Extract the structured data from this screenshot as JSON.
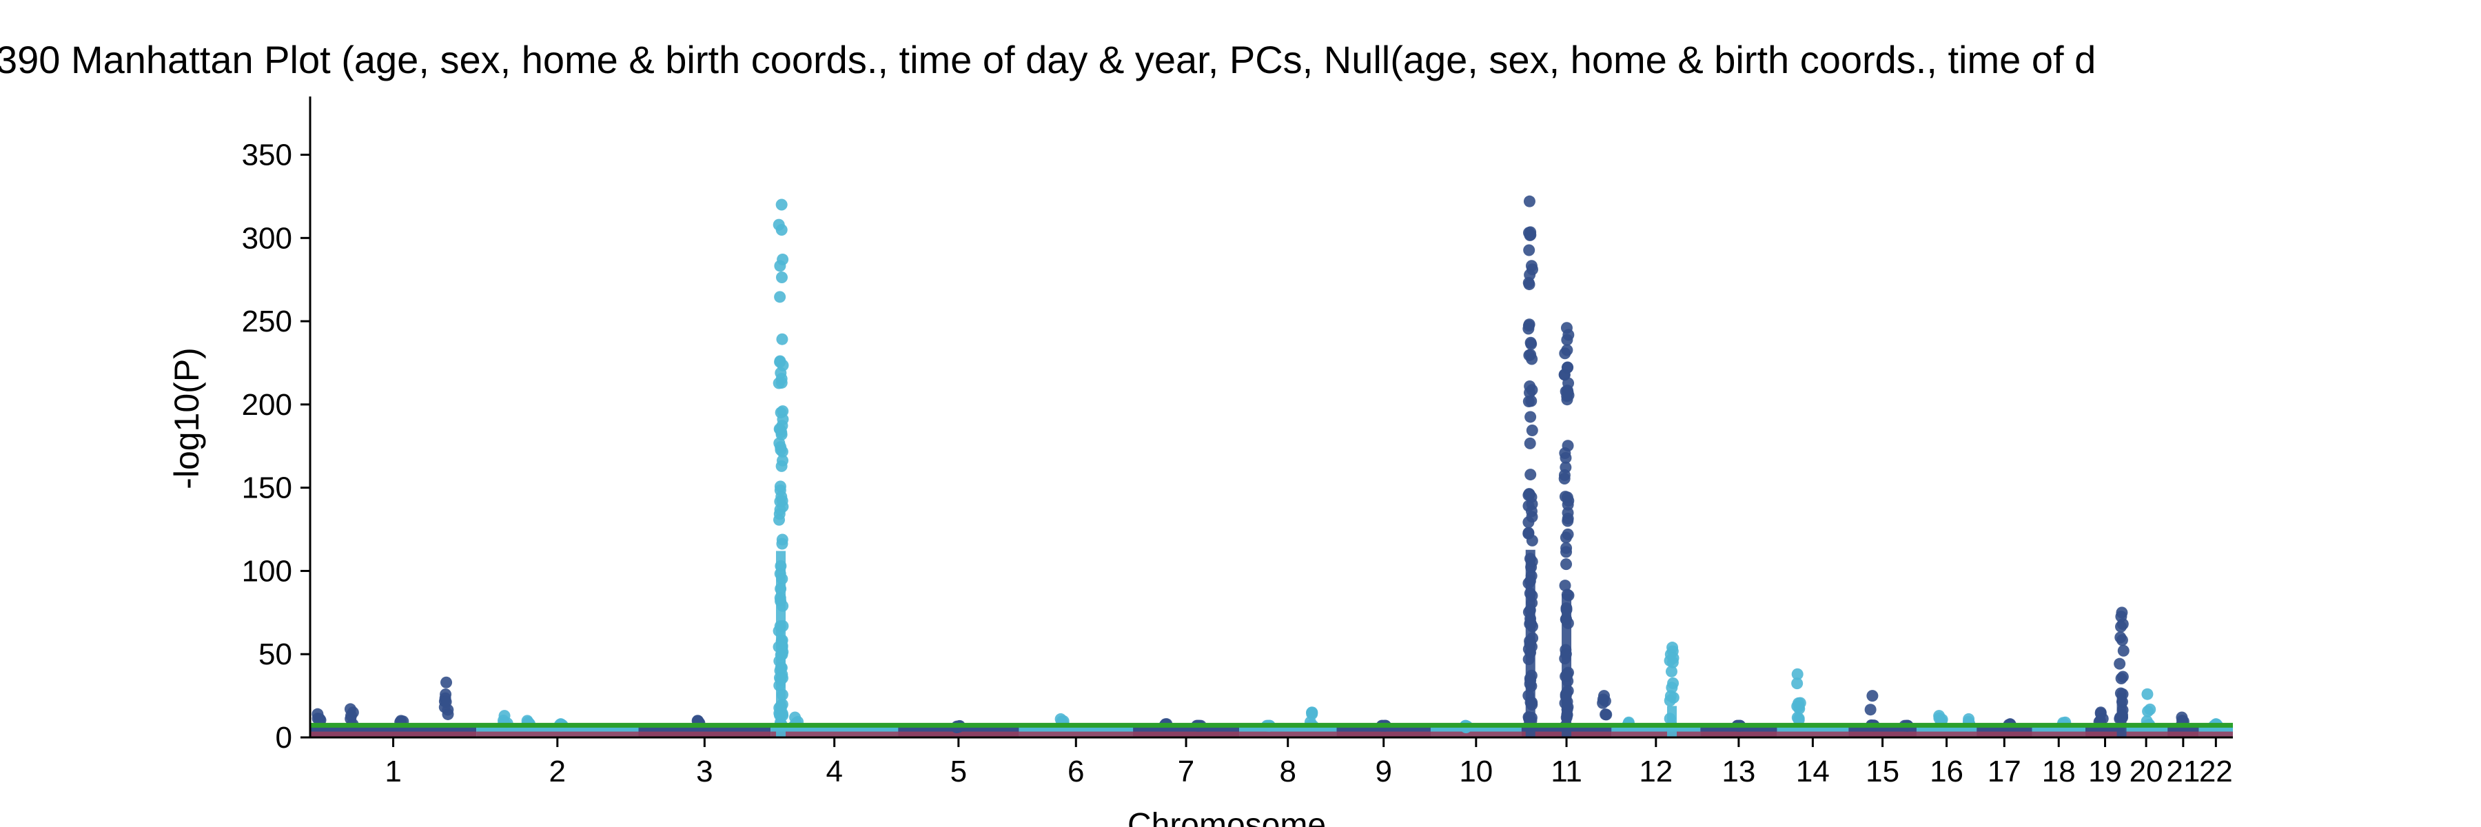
{
  "chart_data": {
    "type": "scatter",
    "title": "390 Manhattan Plot (age, sex, home & birth coords., time of day & year, PCs, Null(age, sex, home & birth coords., time of d",
    "xlabel": "Chromosome",
    "ylabel": "-log10(P)",
    "ylim": [
      0,
      385
    ],
    "yticks": [
      0,
      50,
      100,
      150,
      200,
      250,
      300,
      350
    ],
    "grid": false,
    "colors": {
      "odd": "#34508a",
      "even": "#4fb7d5",
      "threshold": "#2ca02c",
      "baseline": "#9b3c5a"
    },
    "genome_wide_threshold": 7.3,
    "chromosomes": [
      {
        "label": "1",
        "length": 249,
        "color": "odd",
        "peaks": [
          {
            "pos": 0.05,
            "max": 14
          },
          {
            "pos": 0.25,
            "max": 17
          },
          {
            "pos": 0.55,
            "max": 10
          },
          {
            "pos": 0.82,
            "max": 33
          }
        ]
      },
      {
        "label": "2",
        "length": 243,
        "color": "even",
        "peaks": [
          {
            "pos": 0.18,
            "max": 13
          },
          {
            "pos": 0.32,
            "max": 10
          },
          {
            "pos": 0.52,
            "max": 8
          }
        ]
      },
      {
        "label": "3",
        "length": 198,
        "color": "odd",
        "peaks": [
          {
            "pos": 0.45,
            "max": 10
          }
        ]
      },
      {
        "label": "4",
        "length": 191,
        "color": "even",
        "peaks": [
          {
            "pos": 0.08,
            "max": 320
          },
          {
            "pos": 0.2,
            "max": 12
          }
        ]
      },
      {
        "label": "5",
        "length": 181,
        "color": "odd",
        "peaks": [
          {
            "pos": 0.5,
            "max": 6
          }
        ]
      },
      {
        "label": "6",
        "length": 171,
        "color": "even",
        "peaks": [
          {
            "pos": 0.38,
            "max": 11
          }
        ]
      },
      {
        "label": "7",
        "length": 159,
        "color": "odd",
        "peaks": [
          {
            "pos": 0.3,
            "max": 8
          },
          {
            "pos": 0.62,
            "max": 7
          }
        ]
      },
      {
        "label": "8",
        "length": 146,
        "color": "even",
        "peaks": [
          {
            "pos": 0.3,
            "max": 7
          },
          {
            "pos": 0.75,
            "max": 15
          }
        ]
      },
      {
        "label": "9",
        "length": 141,
        "color": "odd",
        "peaks": [
          {
            "pos": 0.5,
            "max": 7
          }
        ]
      },
      {
        "label": "10",
        "length": 136,
        "color": "even",
        "peaks": [
          {
            "pos": 0.4,
            "max": 6
          }
        ]
      },
      {
        "label": "11",
        "length": 135,
        "color": "odd",
        "peaks": [
          {
            "pos": 0.1,
            "max": 322
          },
          {
            "pos": 0.5,
            "max": 246
          },
          {
            "pos": 0.92,
            "max": 25
          }
        ]
      },
      {
        "label": "12",
        "length": 133,
        "color": "even",
        "peaks": [
          {
            "pos": 0.2,
            "max": 9
          },
          {
            "pos": 0.68,
            "max": 54
          }
        ]
      },
      {
        "label": "13",
        "length": 115,
        "color": "odd",
        "peaks": [
          {
            "pos": 0.5,
            "max": 7
          }
        ]
      },
      {
        "label": "14",
        "length": 107,
        "color": "even",
        "peaks": [
          {
            "pos": 0.3,
            "max": 38
          }
        ]
      },
      {
        "label": "15",
        "length": 102,
        "color": "odd",
        "peaks": [
          {
            "pos": 0.35,
            "max": 25
          },
          {
            "pos": 0.85,
            "max": 7
          }
        ]
      },
      {
        "label": "16",
        "length": 90,
        "color": "even",
        "peaks": [
          {
            "pos": 0.4,
            "max": 13
          },
          {
            "pos": 0.9,
            "max": 11
          }
        ]
      },
      {
        "label": "17",
        "length": 83,
        "color": "odd",
        "peaks": [
          {
            "pos": 0.6,
            "max": 8
          }
        ]
      },
      {
        "label": "18",
        "length": 80,
        "color": "even",
        "peaks": [
          {
            "pos": 0.6,
            "max": 9
          }
        ]
      },
      {
        "label": "19",
        "length": 59,
        "color": "odd",
        "peaks": [
          {
            "pos": 0.4,
            "max": 15
          },
          {
            "pos": 0.92,
            "max": 75
          }
        ]
      },
      {
        "label": "20",
        "length": 64,
        "color": "even",
        "peaks": [
          {
            "pos": 0.55,
            "max": 26
          }
        ]
      },
      {
        "label": "21",
        "length": 47,
        "color": "odd",
        "peaks": [
          {
            "pos": 0.5,
            "max": 12
          }
        ]
      },
      {
        "label": "22",
        "length": 51,
        "color": "even",
        "peaks": [
          {
            "pos": 0.5,
            "max": 8
          }
        ]
      }
    ]
  }
}
